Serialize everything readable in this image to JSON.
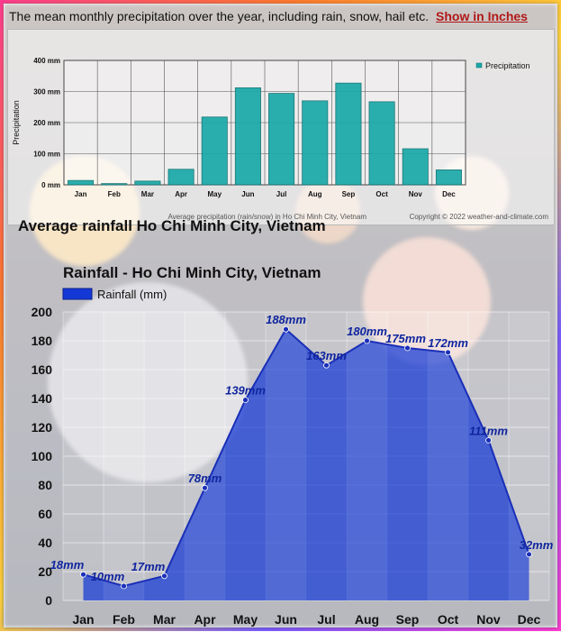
{
  "intro": {
    "text": "The mean monthly precipitation over the year, including rain, snow, hail etc.",
    "link": "Show in Inches"
  },
  "heading": "Average rainfall Ho Chi Minh City, Vietnam",
  "colors": {
    "top_bar": "#1aa8a8",
    "main_area": "#1438d6",
    "main_label": "#10259e",
    "link": "#b01818"
  },
  "chart_data": [
    {
      "type": "bar",
      "categories": [
        "Jan",
        "Feb",
        "Mar",
        "Apr",
        "May",
        "Jun",
        "Jul",
        "Aug",
        "Sep",
        "Oct",
        "Nov",
        "Dec"
      ],
      "values": [
        14,
        4,
        12,
        50,
        218,
        312,
        294,
        270,
        327,
        267,
        116,
        48
      ],
      "ylabel": "Precipitation",
      "ytick_labels": [
        "400 mm",
        "300 mm",
        "200 mm",
        "100 mm",
        "0 mm"
      ],
      "ylim": [
        0,
        400
      ],
      "legend": [
        "Precipitation"
      ],
      "legend_position": "right",
      "grid": true,
      "caption": "Average precipitation (rain/snow) in Ho Chi Minh City, Vietnam",
      "copyright": "Copyright © 2022  weather-and-climate.com"
    },
    {
      "type": "area",
      "title": "Rainfall - Ho Chi Minh City, Vietnam",
      "legend": [
        "Rainfall (mm)"
      ],
      "legend_position": "top-left",
      "categories": [
        "Jan",
        "Feb",
        "Mar",
        "Apr",
        "May",
        "Jun",
        "Jul",
        "Aug",
        "Sep",
        "Oct",
        "Nov",
        "Dec"
      ],
      "values": [
        18,
        10,
        17,
        78,
        139,
        188,
        163,
        180,
        175,
        172,
        111,
        32
      ],
      "data_labels": [
        "18mm",
        "10mm",
        "17mm",
        "78mm",
        "139mm",
        "188mm",
        "163mm",
        "180mm",
        "175mm",
        "172mm",
        "111mm",
        "32mm"
      ],
      "ytick_labels": [
        "0",
        "20",
        "40",
        "60",
        "80",
        "100",
        "120",
        "140",
        "160",
        "180",
        "200"
      ],
      "ylim": [
        0,
        200
      ],
      "grid": true
    }
  ]
}
